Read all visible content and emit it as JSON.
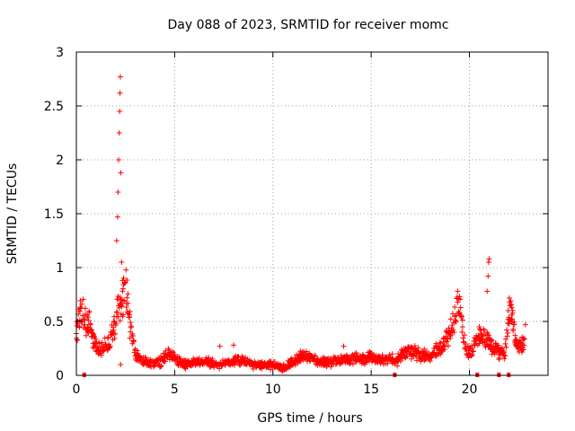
{
  "chart_data": {
    "type": "scatter",
    "title": "Day 088 of 2023, SRMTID for receiver momc",
    "xlabel": "GPS time / hours",
    "ylabel": "SRMTID / TECUs",
    "xlim": [
      0,
      24
    ],
    "ylim": [
      0,
      3
    ],
    "xticks": [
      0,
      5,
      10,
      15,
      20
    ],
    "xtick_labels": [
      "0",
      "5",
      "10",
      "15",
      "20"
    ],
    "yticks": [
      0,
      0.5,
      1,
      1.5,
      2,
      2.5,
      3
    ],
    "ytick_labels": [
      "0",
      "0.5",
      "1",
      "1.5",
      "2",
      "2.5",
      "3"
    ],
    "grid": true,
    "marker": "+",
    "color": "#ff0000",
    "series": [
      {
        "name": "SRMTID",
        "profile": [
          [
            0.0,
            0.38
          ],
          [
            0.15,
            0.55
          ],
          [
            0.3,
            0.6
          ],
          [
            0.45,
            0.5
          ],
          [
            0.6,
            0.45
          ],
          [
            0.7,
            0.55
          ],
          [
            0.8,
            0.35
          ],
          [
            1.0,
            0.28
          ],
          [
            1.2,
            0.25
          ],
          [
            1.4,
            0.27
          ],
          [
            1.6,
            0.3
          ],
          [
            1.8,
            0.38
          ],
          [
            1.95,
            0.45
          ],
          [
            2.05,
            0.55
          ],
          [
            2.15,
            0.6
          ],
          [
            2.3,
            0.65
          ],
          [
            2.45,
            0.8
          ],
          [
            2.55,
            0.78
          ],
          [
            2.7,
            0.5
          ],
          [
            2.85,
            0.35
          ],
          [
            3.0,
            0.2
          ],
          [
            3.3,
            0.14
          ],
          [
            3.8,
            0.11
          ],
          [
            4.3,
            0.13
          ],
          [
            4.7,
            0.2
          ],
          [
            5.0,
            0.16
          ],
          [
            5.4,
            0.1
          ],
          [
            6.0,
            0.12
          ],
          [
            6.6,
            0.13
          ],
          [
            7.2,
            0.1
          ],
          [
            7.8,
            0.12
          ],
          [
            8.4,
            0.14
          ],
          [
            9.0,
            0.1
          ],
          [
            9.6,
            0.1
          ],
          [
            10.2,
            0.09
          ],
          [
            10.6,
            0.07
          ],
          [
            11.0,
            0.12
          ],
          [
            11.5,
            0.18
          ],
          [
            12.0,
            0.15
          ],
          [
            12.5,
            0.13
          ],
          [
            13.0,
            0.12
          ],
          [
            13.5,
            0.14
          ],
          [
            14.0,
            0.16
          ],
          [
            14.5,
            0.15
          ],
          [
            15.0,
            0.17
          ],
          [
            15.5,
            0.14
          ],
          [
            16.0,
            0.15
          ],
          [
            16.3,
            0.13
          ],
          [
            16.6,
            0.2
          ],
          [
            17.0,
            0.22
          ],
          [
            17.5,
            0.19
          ],
          [
            18.0,
            0.18
          ],
          [
            18.5,
            0.26
          ],
          [
            18.9,
            0.35
          ],
          [
            19.2,
            0.5
          ],
          [
            19.4,
            0.68
          ],
          [
            19.55,
            0.6
          ],
          [
            19.7,
            0.35
          ],
          [
            19.85,
            0.25
          ],
          [
            20.0,
            0.2
          ],
          [
            20.3,
            0.3
          ],
          [
            20.5,
            0.35
          ],
          [
            20.7,
            0.38
          ],
          [
            20.9,
            0.35
          ],
          [
            21.1,
            0.28
          ],
          [
            21.3,
            0.25
          ],
          [
            21.5,
            0.22
          ],
          [
            21.8,
            0.2
          ],
          [
            22.05,
            0.65
          ],
          [
            22.25,
            0.45
          ],
          [
            22.4,
            0.3
          ],
          [
            22.6,
            0.26
          ],
          [
            22.8,
            0.3
          ]
        ],
        "spikes": [
          [
            0.2,
            0.62
          ],
          [
            1.9,
            0.5
          ],
          [
            2.05,
            1.25
          ],
          [
            2.1,
            1.47
          ],
          [
            2.12,
            1.7
          ],
          [
            2.15,
            2.0
          ],
          [
            2.18,
            2.25
          ],
          [
            2.2,
            2.45
          ],
          [
            2.22,
            2.62
          ],
          [
            2.24,
            2.77
          ],
          [
            2.26,
            1.88
          ],
          [
            2.3,
            1.05
          ],
          [
            2.25,
            0.1
          ],
          [
            2.35,
            0.88
          ],
          [
            7.3,
            0.27
          ],
          [
            8.0,
            0.28
          ],
          [
            13.6,
            0.27
          ],
          [
            20.5,
            0.45
          ],
          [
            20.9,
            0.78
          ],
          [
            20.95,
            0.92
          ],
          [
            20.98,
            1.05
          ],
          [
            21.0,
            1.08
          ],
          [
            22.1,
            0.69
          ],
          [
            22.85,
            0.47
          ]
        ],
        "zero_points": [
          0.4,
          16.2,
          20.4,
          21.5,
          22.0
        ]
      }
    ]
  }
}
